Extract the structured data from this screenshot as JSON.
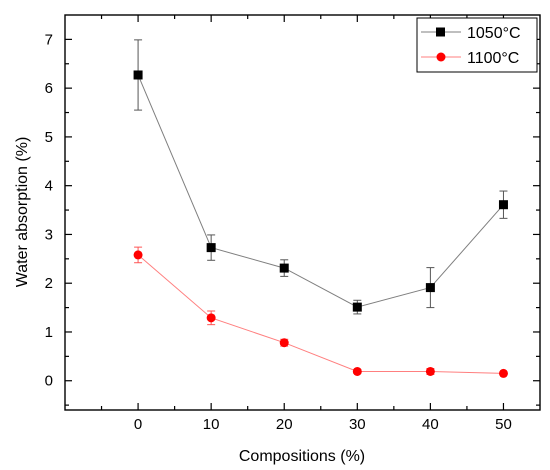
{
  "chart_data": {
    "type": "line",
    "xlabel": "Compositions (%)",
    "ylabel": "Water absorption  (%)",
    "xlim": [
      -10,
      55
    ],
    "ylim": [
      -0.6,
      7.5
    ],
    "xticks": [
      0,
      10,
      20,
      30,
      40,
      50
    ],
    "yticks": [
      0,
      1,
      2,
      3,
      4,
      5,
      6,
      7
    ],
    "legend_position": "top-right",
    "grid": false,
    "series": [
      {
        "name": "1050°C",
        "color": "#000000",
        "line_color": "#7f7f7f",
        "marker": "square",
        "x": [
          0,
          10,
          20,
          30,
          40,
          50
        ],
        "y": [
          6.27,
          2.73,
          2.31,
          1.51,
          1.91,
          3.61
        ],
        "error": [
          0.72,
          0.26,
          0.17,
          0.14,
          0.41,
          0.28
        ]
      },
      {
        "name": "1100°C",
        "color": "#ff0000",
        "line_color": "#ff7f7f",
        "marker": "circle",
        "x": [
          0,
          10,
          20,
          30,
          40,
          50
        ],
        "y": [
          2.58,
          1.29,
          0.78,
          0.19,
          0.19,
          0.15
        ],
        "error": [
          0.16,
          0.14,
          0.07,
          0.04,
          0.06,
          0.03
        ]
      }
    ]
  }
}
